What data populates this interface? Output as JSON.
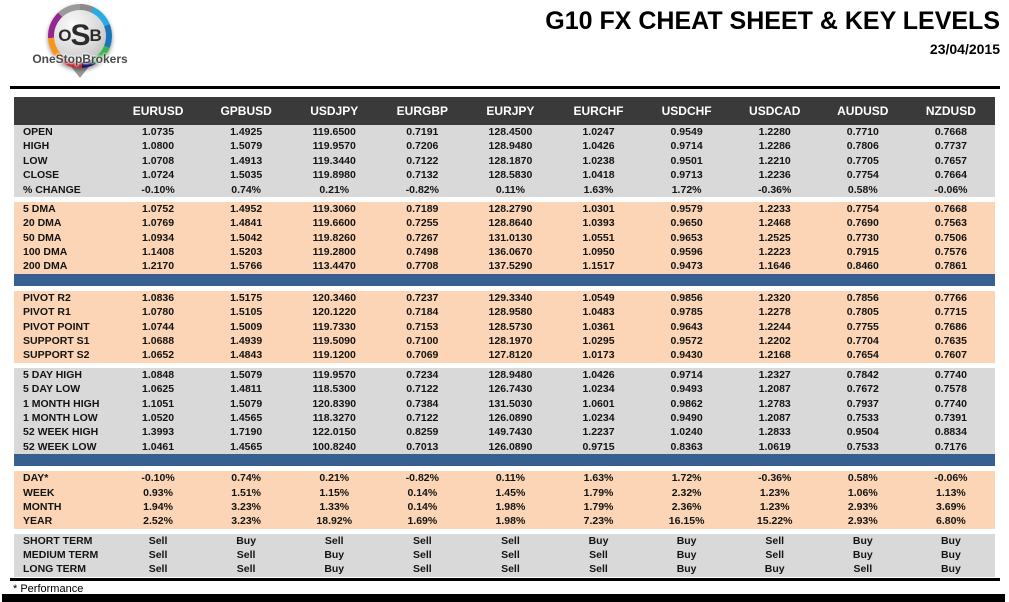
{
  "header": {
    "logo_text": "OSB",
    "logo_letters": [
      "O",
      "S",
      "B"
    ],
    "logo_name": "OneStopBrokers",
    "title": "G10 FX CHEAT SHEET & KEY LEVELS",
    "date": "23/04/2015"
  },
  "colors": {
    "header_bar": "#3a3a3a",
    "section_gray": "#d9d9d9",
    "section_peach": "#fbd5b5",
    "divider_blue": "#376091",
    "pivot_resistance_green": "#00a651",
    "pivot_point_navy": "#17365d",
    "support_red": "#ee1111",
    "buy_green": "#00b05d",
    "sell_red": "#f20d0d"
  },
  "table": {
    "columns": [
      "EURUSD",
      "GPBUSD",
      "USDJPY",
      "EURGBP",
      "EURJPY",
      "EURCHF",
      "USDCHF",
      "USDCAD",
      "AUDUSD",
      "NZDUSD"
    ],
    "sections": [
      {
        "id": "ohlc",
        "bg": "gray",
        "divider_after": false,
        "rows": [
          {
            "label": "OPEN",
            "values": [
              "1.0735",
              "1.4925",
              "119.6500",
              "0.7191",
              "128.4500",
              "1.0247",
              "0.9549",
              "1.2280",
              "0.7710",
              "0.7668"
            ]
          },
          {
            "label": "HIGH",
            "values": [
              "1.0800",
              "1.5079",
              "119.9570",
              "0.7206",
              "128.9480",
              "1.0426",
              "0.9714",
              "1.2286",
              "0.7806",
              "0.7737"
            ]
          },
          {
            "label": "LOW",
            "values": [
              "1.0708",
              "1.4913",
              "119.3440",
              "0.7122",
              "128.1870",
              "1.0238",
              "0.9501",
              "1.2210",
              "0.7705",
              "0.7657"
            ]
          },
          {
            "label": "CLOSE",
            "values": [
              "1.0724",
              "1.5035",
              "119.8980",
              "0.7132",
              "128.5830",
              "1.0418",
              "0.9713",
              "1.2236",
              "0.7754",
              "0.7664"
            ]
          },
          {
            "label": "% CHANGE",
            "values": [
              "-0.10%",
              "0.74%",
              "0.21%",
              "-0.82%",
              "0.11%",
              "1.63%",
              "1.72%",
              "-0.36%",
              "0.58%",
              "-0.06%"
            ]
          }
        ]
      },
      {
        "id": "dma",
        "bg": "peach",
        "divider_after": true,
        "rows": [
          {
            "label": "5 DMA",
            "values": [
              "1.0752",
              "1.4952",
              "119.3060",
              "0.7189",
              "128.2790",
              "1.0301",
              "0.9579",
              "1.2233",
              "0.7754",
              "0.7668"
            ]
          },
          {
            "label": "20 DMA",
            "values": [
              "1.0769",
              "1.4841",
              "119.6600",
              "0.7255",
              "128.8640",
              "1.0393",
              "0.9650",
              "1.2468",
              "0.7690",
              "0.7563"
            ]
          },
          {
            "label": "50 DMA",
            "values": [
              "1.0934",
              "1.5042",
              "119.8260",
              "0.7267",
              "131.0130",
              "1.0551",
              "0.9653",
              "1.2525",
              "0.7730",
              "0.7506"
            ]
          },
          {
            "label": "100 DMA",
            "values": [
              "1.1408",
              "1.5203",
              "119.2800",
              "0.7498",
              "136.0670",
              "1.0950",
              "0.9596",
              "1.2223",
              "0.7915",
              "0.7576"
            ]
          },
          {
            "label": "200 DMA",
            "values": [
              "1.2170",
              "1.5766",
              "113.4470",
              "0.7708",
              "137.5290",
              "1.1517",
              "0.9473",
              "1.1646",
              "0.8460",
              "0.7861"
            ]
          }
        ]
      },
      {
        "id": "pivots",
        "bg": "peach",
        "divider_after": false,
        "rows": [
          {
            "label": "PIVOT R2",
            "label_color": "green",
            "values": [
              "1.0836",
              "1.5175",
              "120.3460",
              "0.7237",
              "129.3340",
              "1.0549",
              "0.9856",
              "1.2320",
              "0.7856",
              "0.7766"
            ]
          },
          {
            "label": "PIVOT R1",
            "label_color": "green",
            "values": [
              "1.0780",
              "1.5105",
              "120.1220",
              "0.7184",
              "128.9580",
              "1.0483",
              "0.9785",
              "1.2278",
              "0.7805",
              "0.7715"
            ]
          },
          {
            "label": "PIVOT POINT",
            "label_color": "navy",
            "values": [
              "1.0744",
              "1.5009",
              "119.7330",
              "0.7153",
              "128.5730",
              "1.0361",
              "0.9643",
              "1.2244",
              "0.7755",
              "0.7686"
            ]
          },
          {
            "label": "SUPPORT S1",
            "label_color": "red",
            "values": [
              "1.0688",
              "1.4939",
              "119.5090",
              "0.7100",
              "128.1970",
              "1.0295",
              "0.9572",
              "1.2202",
              "0.7704",
              "0.7635"
            ]
          },
          {
            "label": "SUPPORT S2",
            "label_color": "red",
            "values": [
              "1.0652",
              "1.4843",
              "119.1200",
              "0.7069",
              "127.8120",
              "1.0173",
              "0.9430",
              "1.2168",
              "0.7654",
              "0.7607"
            ]
          }
        ]
      },
      {
        "id": "ranges",
        "bg": "gray",
        "divider_after": true,
        "rows": [
          {
            "label": "5 DAY HIGH",
            "values": [
              "1.0848",
              "1.5079",
              "119.9570",
              "0.7234",
              "128.9480",
              "1.0426",
              "0.9714",
              "1.2327",
              "0.7842",
              "0.7740"
            ]
          },
          {
            "label": "5 DAY LOW",
            "values": [
              "1.0625",
              "1.4811",
              "118.5300",
              "0.7122",
              "126.7430",
              "1.0234",
              "0.9493",
              "1.2087",
              "0.7672",
              "0.7578"
            ]
          },
          {
            "label": "1 MONTH HIGH",
            "values": [
              "1.1051",
              "1.5079",
              "120.8390",
              "0.7384",
              "131.5030",
              "1.0601",
              "0.9862",
              "1.2783",
              "0.7937",
              "0.7740"
            ]
          },
          {
            "label": "1 MONTH LOW",
            "values": [
              "1.0520",
              "1.4565",
              "118.3270",
              "0.7122",
              "126.0890",
              "1.0234",
              "0.9490",
              "1.2087",
              "0.7533",
              "0.7391"
            ]
          },
          {
            "label": "52 WEEK HIGH",
            "values": [
              "1.3993",
              "1.7190",
              "122.0150",
              "0.8259",
              "149.7430",
              "1.2237",
              "1.0240",
              "1.2833",
              "0.9504",
              "0.8834"
            ]
          },
          {
            "label": "52 WEEK LOW",
            "values": [
              "1.0461",
              "1.4565",
              "100.8240",
              "0.7013",
              "126.0890",
              "0.9715",
              "0.8363",
              "1.0619",
              "0.7533",
              "0.7176"
            ]
          }
        ]
      },
      {
        "id": "performance",
        "bg": "peach",
        "divider_after": false,
        "rows": [
          {
            "label": "DAY*",
            "values": [
              "-0.10%",
              "0.74%",
              "0.21%",
              "-0.82%",
              "0.11%",
              "1.63%",
              "1.72%",
              "-0.36%",
              "0.58%",
              "-0.06%"
            ]
          },
          {
            "label": "WEEK",
            "values": [
              "0.93%",
              "1.51%",
              "1.15%",
              "0.14%",
              "1.45%",
              "1.79%",
              "2.32%",
              "1.23%",
              "1.06%",
              "1.13%"
            ]
          },
          {
            "label": "MONTH",
            "values": [
              "1.94%",
              "3.23%",
              "1.33%",
              "0.14%",
              "1.98%",
              "1.79%",
              "2.36%",
              "1.23%",
              "2.93%",
              "3.69%"
            ]
          },
          {
            "label": "YEAR",
            "values": [
              "2.52%",
              "3.23%",
              "18.92%",
              "1.69%",
              "1.98%",
              "7.23%",
              "16.15%",
              "15.22%",
              "2.93%",
              "6.80%"
            ]
          }
        ]
      },
      {
        "id": "signals",
        "bg": "gray",
        "divider_after": false,
        "rows": [
          {
            "label": "SHORT TERM",
            "values": [
              "Sell",
              "Buy",
              "Sell",
              "Sell",
              "Sell",
              "Buy",
              "Buy",
              "Sell",
              "Buy",
              "Buy"
            ]
          },
          {
            "label": "MEDIUM TERM",
            "values": [
              "Sell",
              "Sell",
              "Buy",
              "Sell",
              "Sell",
              "Sell",
              "Buy",
              "Sell",
              "Buy",
              "Buy"
            ]
          },
          {
            "label": "LONG TERM",
            "values": [
              "Sell",
              "Sell",
              "Buy",
              "Sell",
              "Sell",
              "Sell",
              "Buy",
              "Buy",
              "Sell",
              "Buy"
            ]
          }
        ]
      }
    ]
  },
  "footer": {
    "note": "* Performance"
  }
}
